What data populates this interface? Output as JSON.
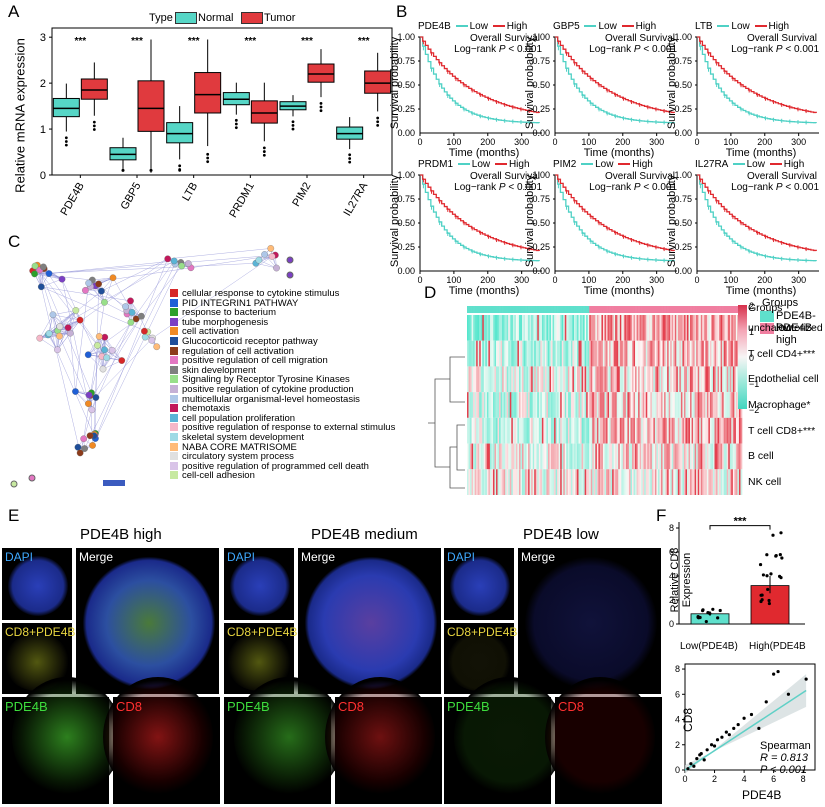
{
  "panels": {
    "A": "A",
    "B": "B",
    "C": "C",
    "D": "D",
    "E": "E",
    "F": "F"
  },
  "colors": {
    "normal": "#56d6c6",
    "tumor": "#e03a3e",
    "low_line": "#4fd1c5",
    "high_line": "#e0292f"
  },
  "panel_a": {
    "legend_title": "Type",
    "legend_normal": "Normal",
    "legend_tumor": "Tumor",
    "ylabel": "Relative mRNA expression",
    "sig": "***"
  },
  "panel_b": {
    "legend_low": "Low",
    "legend_high": "High",
    "ylabel": "Survival probability",
    "xlabel": "Time (months)",
    "subtitle": "Overall Survival",
    "pvalue_prefix": "Log−rank",
    "pvalue_sym": "P",
    "pvalue_suffix": "< 0.001",
    "plots": [
      {
        "gene": "PDE4B"
      },
      {
        "gene": "GBP5"
      },
      {
        "gene": "LTB"
      },
      {
        "gene": "PRDM1"
      },
      {
        "gene": "PIM2"
      },
      {
        "gene": "IL27RA"
      }
    ]
  },
  "panel_c": {
    "terms": [
      {
        "label": "cellular response to cytokine stimulus",
        "color": "#d62728"
      },
      {
        "label": "PID INTEGRIN1 PATHWAY",
        "color": "#1f5fd6"
      },
      {
        "label": "response to bacterium",
        "color": "#2ca02c"
      },
      {
        "label": "tube morphogenesis",
        "color": "#7b3fc4"
      },
      {
        "label": "cell activation",
        "color": "#f08a24"
      },
      {
        "label": "Glucocorticoid receptor pathway",
        "color": "#1f4e99"
      },
      {
        "label": "regulation of cell activation",
        "color": "#8c3b1a"
      },
      {
        "label": "positive regulation of cell migration",
        "color": "#e377c2"
      },
      {
        "label": "skin development",
        "color": "#7f7f7f"
      },
      {
        "label": "Signaling by Receptor Tyrosine Kinases",
        "color": "#98df8a"
      },
      {
        "label": "positive regulation of cytokine production",
        "color": "#c5b0d5"
      },
      {
        "label": "multicellular organismal-level homeostasis",
        "color": "#aec7e8"
      },
      {
        "label": "chemotaxis",
        "color": "#c2185b"
      },
      {
        "label": "cell population proliferation",
        "color": "#5ab4d6"
      },
      {
        "label": "positive regulation of response to external stimulus",
        "color": "#f5b7c8"
      },
      {
        "label": "skeletal system development",
        "color": "#9edae5"
      },
      {
        "label": "NABA CORE MATRISOME",
        "color": "#ffbb78"
      },
      {
        "label": "circulatory system process",
        "color": "#e0e0e0"
      },
      {
        "label": "positive regulation of programmed cell death",
        "color": "#d9c4e8"
      },
      {
        "label": "cell-cell adhesion",
        "color": "#c7e9a0"
      }
    ]
  },
  "panel_d": {
    "rows": [
      "Groups",
      "uncharacterized cell***",
      "T cell CD4+***",
      "Endothelial cell",
      "Macrophage*",
      "T cell CD8+***",
      "B cell",
      "NK cell"
    ],
    "scale": [
      "2",
      "1",
      "0",
      "−1",
      "−2"
    ],
    "legend_title": "Groups",
    "legend_low": "PDE4B-low",
    "legend_high": "PDE4B-high"
  },
  "panel_e": {
    "titles": [
      "PDE4B high",
      "PDE4B medium",
      "PDE4B low"
    ],
    "dapi": "DAPI",
    "merge": "Merge",
    "cd8pde": "CD8+PDE4B",
    "pde": "PDE4B",
    "cd8": "CD8"
  },
  "panel_f": {
    "bar_ylabel": "Relative CD8 Expression",
    "bar_low": "Low(PDE4B)",
    "bar_high": "High(PDE4B",
    "bar_sig": "***",
    "bar_values": [
      0.85,
      3.2
    ],
    "scatter_ylabel": "CD8",
    "scatter_xlabel": "PDE4B",
    "spearman": "Spearman",
    "r_text": "R = 0.813",
    "p_text": "P < 0.001"
  },
  "chart_data": [
    {
      "type": "box",
      "title": "",
      "xlabel": "",
      "ylabel": "Relative mRNA expression",
      "categories": [
        "PDE4B",
        "GBP5",
        "LTB",
        "PRDM1",
        "PIM2",
        "IL27RA"
      ],
      "ylim": [
        0,
        3.2
      ],
      "series": [
        {
          "name": "Normal",
          "medians": [
            1.45,
            0.45,
            0.9,
            1.65,
            1.5,
            0.9
          ]
        },
        {
          "name": "Tumor",
          "medians": [
            1.85,
            1.45,
            1.75,
            1.35,
            2.2,
            2.0
          ]
        }
      ],
      "yticks": [
        0,
        1,
        2,
        3
      ]
    },
    {
      "type": "line",
      "title": "",
      "xlabel": "Time (months)",
      "ylabel": "Survival probability",
      "series": [
        {
          "name": "Low"
        },
        {
          "name": "High"
        }
      ],
      "xticks": [
        0,
        100,
        200,
        300
      ],
      "yticks": [
        0.25,
        0.5,
        0.75,
        1.0
      ]
    },
    {
      "type": "bar",
      "categories": [
        "Low(PDE4B)",
        "High(PDE4B"
      ],
      "values": [
        0.85,
        3.2
      ],
      "ylabel": "Relative CD8 Expression",
      "yticks": [
        0,
        2,
        4,
        6,
        8
      ]
    },
    {
      "type": "scatter",
      "xlabel": "PDE4B",
      "ylabel": "CD8",
      "xticks": [
        0,
        2,
        4,
        6,
        8
      ],
      "yticks": [
        0,
        2,
        4,
        6,
        8
      ],
      "x": [
        0.2,
        0.4,
        0.6,
        0.8,
        1.0,
        1.1,
        1.3,
        1.5,
        1.8,
        2.0,
        2.2,
        2.5,
        2.8,
        3.0,
        3.3,
        3.6,
        4.0,
        4.5,
        5.0,
        5.5,
        6.0,
        6.3,
        7.0,
        8.2
      ],
      "y": [
        0.1,
        0.5,
        0.3,
        0.9,
        1.2,
        1.3,
        0.8,
        1.6,
        2.0,
        1.9,
        2.4,
        2.6,
        3.0,
        2.8,
        3.3,
        3.6,
        4.1,
        4.4,
        3.3,
        5.4,
        7.6,
        7.8,
        6.0,
        7.2
      ]
    }
  ]
}
